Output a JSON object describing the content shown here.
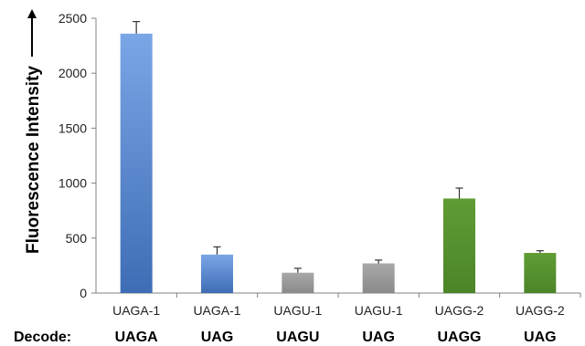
{
  "chart_data": {
    "type": "bar",
    "ylabel": "Fluorescence Intensity",
    "ylabel_arrow": "→",
    "ylim": [
      0,
      2500
    ],
    "yticks": [
      0,
      500,
      1000,
      1500,
      2000,
      2500
    ],
    "grid": false,
    "categories": [
      "UAGA-1",
      "UAGA-1",
      "UAGU-1",
      "UAGU-1",
      "UAGG-2",
      "UAGG-2"
    ],
    "values": [
      2360,
      350,
      185,
      270,
      860,
      365
    ],
    "errors": [
      110,
      70,
      40,
      30,
      95,
      20
    ],
    "colors": [
      "#5b87cc",
      "#5b87cc",
      "#9e9e9e",
      "#9e9e9e",
      "#5a9432",
      "#5a9432"
    ],
    "decode_title": "Decode:",
    "decode_labels": [
      "UAGA",
      "UAG",
      "UAGU",
      "UAG",
      "UAGG",
      "UAG"
    ]
  }
}
